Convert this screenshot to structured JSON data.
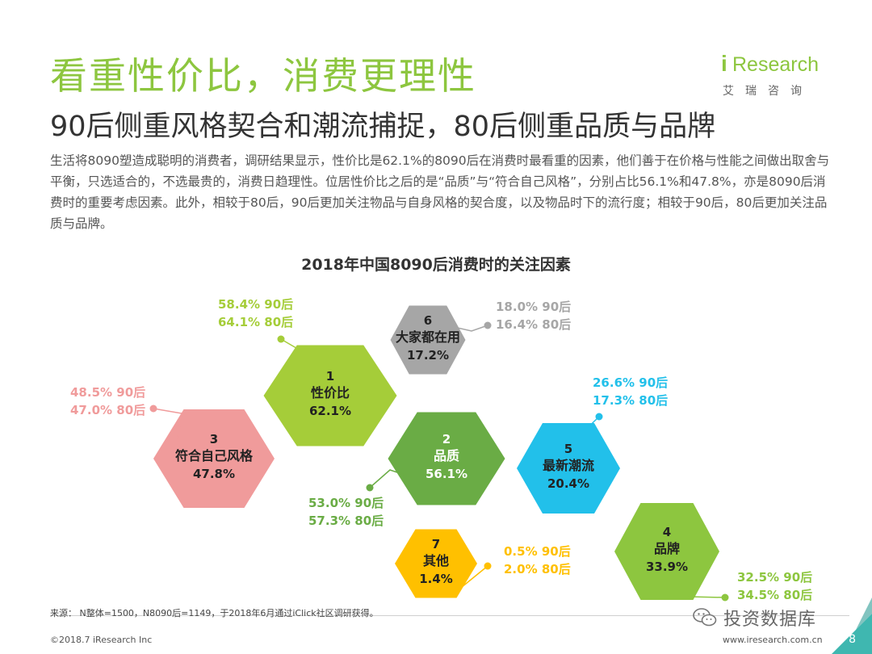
{
  "header": {
    "title": "看重性价比，消费更理性",
    "subtitle": "90后侧重风格契合和潮流捕捉，80后侧重品质与品牌",
    "body": "生活将8090塑造成聪明的消费者，调研结果显示，性价比是62.1%的8090后在消费时最看重的因素，他们善于在价格与性能之间做出取舍与平衡，只选适合的，不选最贵的，消费日趋理性。位居性价比之后的是“品质”与“符合自己风格”，分别占比56.1%和47.8%，亦是8090后消费时的重要考虑因素。此外，相较于80后，90后更加关注物品与自身风格的契合度，以及物品时下的流行度；相较于90后，80后更加关注品质与品牌。"
  },
  "logo": {
    "mark": "i",
    "name": "Research",
    "cn": "艾瑞咨询"
  },
  "chart_data": {
    "type": "hexagon-bubble",
    "title": "2018年中国8090后消费时的关注因素",
    "factors": [
      {
        "rank": "1",
        "name": "性价比",
        "total": "62.1%",
        "v90": "58.4% 90后",
        "v80": "64.1% 80后",
        "color": "#a5cd39",
        "values": {
          "total": 62.1,
          "post90": 58.4,
          "post80": 64.1
        }
      },
      {
        "rank": "2",
        "name": "品质",
        "total": "56.1%",
        "v90": "53.0% 90后",
        "v80": "57.3% 80后",
        "color": "#6aac45",
        "values": {
          "total": 56.1,
          "post90": 53.0,
          "post80": 57.3
        }
      },
      {
        "rank": "3",
        "name": "符合自己风格",
        "total": "47.8%",
        "v90": "48.5% 90后",
        "v80": "47.0% 80后",
        "color": "#f09b9b",
        "values": {
          "total": 47.8,
          "post90": 48.5,
          "post80": 47.0
        }
      },
      {
        "rank": "4",
        "name": "品牌",
        "total": "33.9%",
        "v90": "32.5% 90后",
        "v80": "34.5% 80后",
        "color": "#8dc63f",
        "values": {
          "total": 33.9,
          "post90": 32.5,
          "post80": 34.5
        }
      },
      {
        "rank": "5",
        "name": "最新潮流",
        "total": "20.4%",
        "v90": "26.6% 90后",
        "v80": "17.3% 80后",
        "color": "#22c0ea",
        "values": {
          "total": 20.4,
          "post90": 26.6,
          "post80": 17.3
        }
      },
      {
        "rank": "6",
        "name": "大家都在用",
        "total": "17.2%",
        "v90": "18.0% 90后",
        "v80": "16.4% 80后",
        "color": "#a6a6a6",
        "values": {
          "total": 17.2,
          "post90": 18.0,
          "post80": 16.4
        }
      },
      {
        "rank": "7",
        "name": "其他",
        "total": "1.4%",
        "v90": "0.5% 90后",
        "v80": "2.0% 80后",
        "color": "#ffc000",
        "values": {
          "total": 1.4,
          "post90": 0.5,
          "post80": 2.0
        }
      }
    ]
  },
  "footer": {
    "source": "来源：  N整体=1500，N8090后=1149，于2018年6月通过iClick社区调研获得。",
    "copyright": "©2018.7 iResearch Inc",
    "website": "www.iresearch.com.cn",
    "wechat": "投资数据库",
    "page": "8"
  },
  "colors": {
    "accent": "#8dc63f",
    "corner": "#3fb7b0"
  }
}
